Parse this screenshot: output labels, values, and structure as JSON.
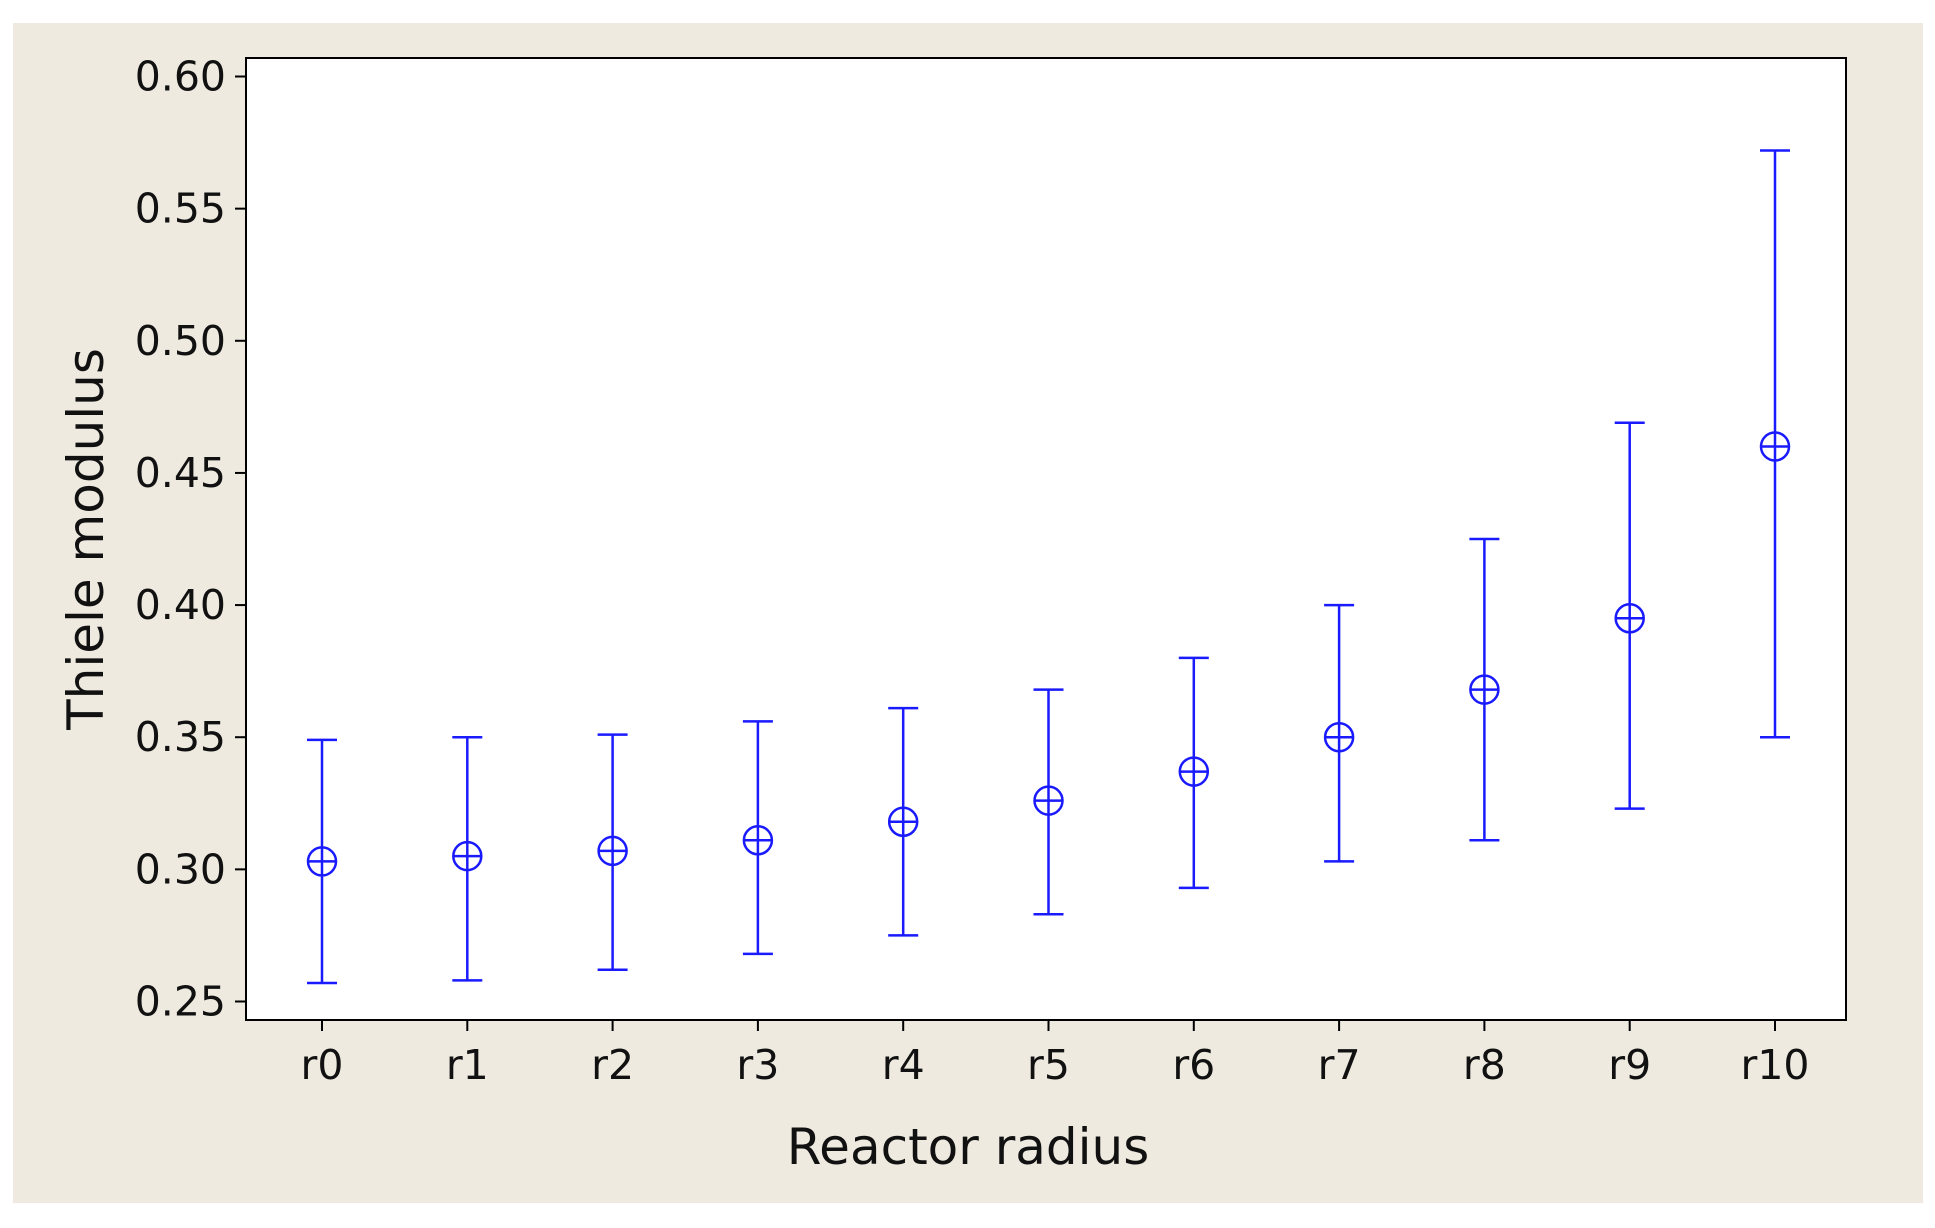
{
  "colors": {
    "panel_background": "#efeae0",
    "plot_background": "#ffffff",
    "series": "#1a1aff",
    "axis": "#000000"
  },
  "chart_data": {
    "type": "scatter",
    "variant": "interval plot (mean with error bars)",
    "title": "",
    "xlabel": "Reactor radius",
    "ylabel": "Thiele modulus",
    "categories": [
      "r0",
      "r1",
      "r2",
      "r3",
      "r4",
      "r5",
      "r6",
      "r7",
      "r8",
      "r9",
      "r10"
    ],
    "series": [
      {
        "values": [
          0.303,
          0.305,
          0.307,
          0.311,
          0.318,
          0.326,
          0.337,
          0.35,
          0.368,
          0.395,
          0.46
        ],
        "lower": [
          0.257,
          0.258,
          0.262,
          0.268,
          0.275,
          0.283,
          0.293,
          0.303,
          0.311,
          0.323,
          0.35
        ],
        "upper": [
          0.349,
          0.35,
          0.351,
          0.356,
          0.361,
          0.368,
          0.38,
          0.4,
          0.425,
          0.469,
          0.572
        ]
      }
    ],
    "ylim": [
      0.243,
      0.607
    ],
    "yticks": [
      0.25,
      0.3,
      0.35,
      0.4,
      0.45,
      0.5,
      0.55,
      0.6
    ],
    "ytick_labels": [
      "0.25",
      "0.30",
      "0.35",
      "0.40",
      "0.45",
      "0.50",
      "0.55",
      "0.60"
    ],
    "grid": false,
    "legend": "none",
    "marker": "circle with crosshair"
  }
}
